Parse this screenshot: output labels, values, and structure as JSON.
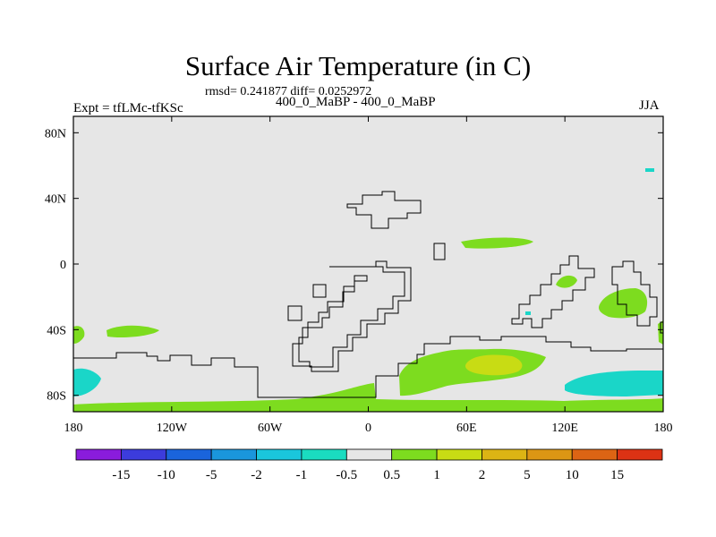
{
  "figure": {
    "title": "Surface Air Temperature (in C)",
    "stats_text": "rmsd= 0.241877 diff= 0.0252972",
    "subtitle": "400_0_MaBP - 400_0_MaBP",
    "experiment_label": "Expt = tfLMc-tfKSc",
    "season": "JJA"
  },
  "map": {
    "background_color": "#e6e6e6",
    "coastline_color": "#000000",
    "lat_ticks": [
      {
        "value": 80,
        "label": "80N"
      },
      {
        "value": 40,
        "label": "40N"
      },
      {
        "value": 0,
        "label": "0"
      },
      {
        "value": -40,
        "label": "40S"
      },
      {
        "value": -80,
        "label": "80S"
      }
    ],
    "lon_ticks": [
      {
        "value": -180,
        "label": "180"
      },
      {
        "value": -120,
        "label": "120W"
      },
      {
        "value": -60,
        "label": "60W"
      },
      {
        "value": 0,
        "label": "0"
      },
      {
        "value": 60,
        "label": "60E"
      },
      {
        "value": 120,
        "label": "120E"
      },
      {
        "value": 180,
        "label": "180"
      }
    ],
    "anomaly_regions": [
      {
        "name": "tropical-south-atlantic-warm",
        "category": "0.5-1",
        "color": "#7ddc1f"
      },
      {
        "name": "southern-ocean-indian-warm",
        "category": "0.5-1",
        "color": "#7ddc1f"
      },
      {
        "name": "southern-ocean-indian-core",
        "category": "1-2",
        "color": "#c8dc14"
      },
      {
        "name": "australia-warm",
        "category": "0.5-1",
        "color": "#7ddc1f"
      },
      {
        "name": "southern-pacific-cool",
        "category": "-1 to -0.5",
        "color": "#1ad6c8"
      },
      {
        "name": "antarctic-coast-warm",
        "category": "0.5-1",
        "color": "#7ddc1f"
      }
    ]
  },
  "colorbar": {
    "colors": [
      "#8a1cdc",
      "#3c3cdc",
      "#1a64dc",
      "#1a96dc",
      "#1ac6dc",
      "#1adcc0",
      "#e6e6e6",
      "#7ddc1f",
      "#c8dc14",
      "#dcb414",
      "#dc9614",
      "#dc6414",
      "#dc3214"
    ],
    "labels": [
      "-15",
      "-10",
      "-5",
      "-2",
      "-1",
      "-0.5",
      "0.5",
      "1",
      "2",
      "5",
      "10",
      "15"
    ]
  }
}
